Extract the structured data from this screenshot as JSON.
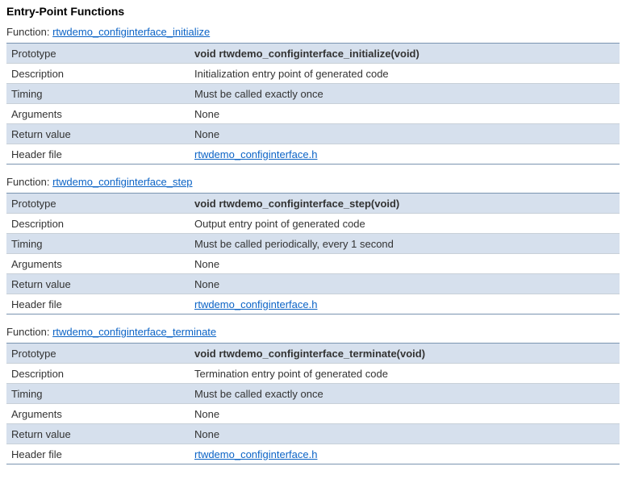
{
  "title": "Entry-Point Functions",
  "func_label": "Function: ",
  "rows": {
    "prototype": "Prototype",
    "description": "Description",
    "timing": "Timing",
    "arguments": "Arguments",
    "return": "Return value",
    "header": "Header file"
  },
  "header_link": "rtwdemo_configinterface.h",
  "functions": [
    {
      "name": "rtwdemo_configinterface_initialize",
      "prototype": "void rtwdemo_configinterface_initialize(void)",
      "description": "Initialization entry point of generated code",
      "timing": "Must be called exactly once",
      "arguments": "None",
      "return": "None"
    },
    {
      "name": "rtwdemo_configinterface_step",
      "prototype": "void rtwdemo_configinterface_step(void)",
      "description": "Output entry point of generated code",
      "timing": "Must be called periodically, every 1 second",
      "arguments": "None",
      "return": "None"
    },
    {
      "name": "rtwdemo_configinterface_terminate",
      "prototype": "void rtwdemo_configinterface_terminate(void)",
      "description": "Termination entry point of generated code",
      "timing": "Must be called exactly once",
      "arguments": "None",
      "return": "None"
    }
  ],
  "colors": {
    "stripe": "#d6e0ed",
    "border": "#c8d0d8",
    "outer_border": "#7a94b0",
    "link": "#0b63c6",
    "text": "#333333",
    "background": "#ffffff"
  }
}
